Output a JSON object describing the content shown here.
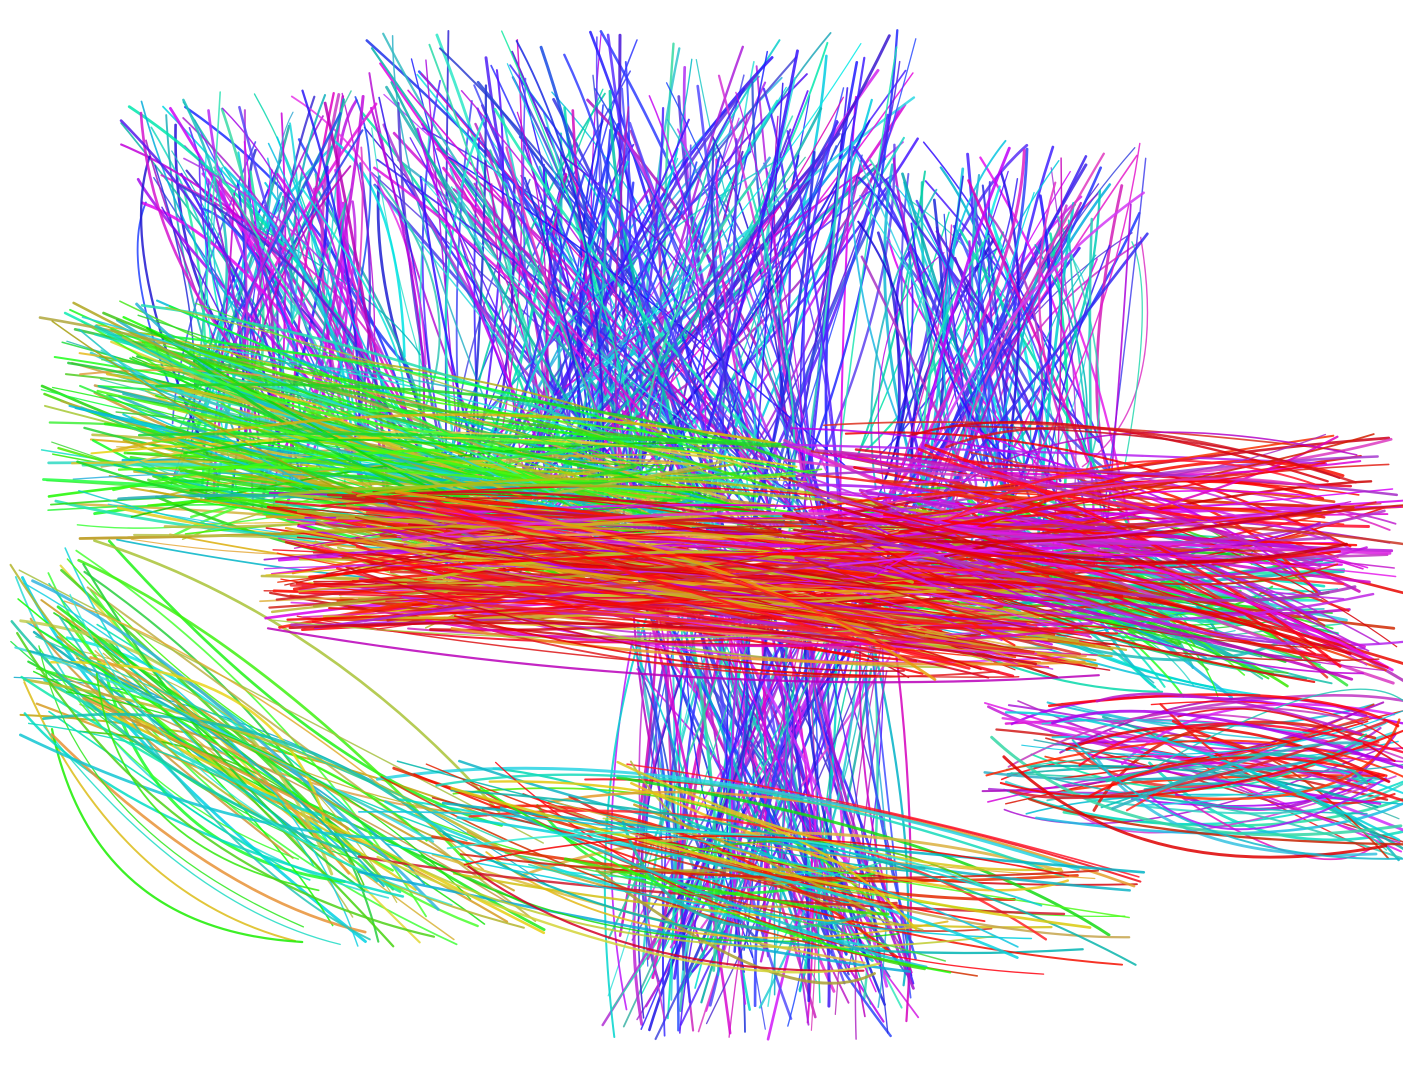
{
  "scene": {
    "background_color": "#ffffff",
    "subject": "tractography",
    "color_encoding": {
      "left_right": "#e8160c",
      "anterior_posterior": "#2ee61a",
      "superior_inferior": "#3b2ef0",
      "blend_magenta": "#c41ad8",
      "blend_cyan": "#19c9c4",
      "blend_yellow": "#c9b52a"
    }
  }
}
